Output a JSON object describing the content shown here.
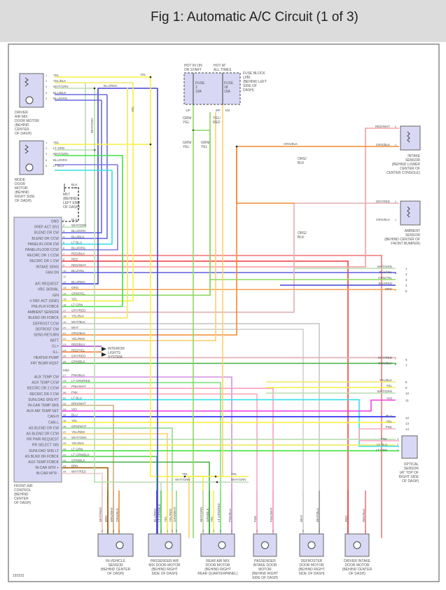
{
  "title": "Fig 1: Automatic A/C Circuit (1 of 3)",
  "figure_id": "191531",
  "wire_colors": {
    "BLK": "#555555",
    "WHT/GRN": "#b8dcb0",
    "BLU/GRN": "#6a6ae0",
    "BLU/BLK": "#6a6ae0",
    "LT BLU": "#33e0e8",
    "BLU/ORG": "#7a7ae0",
    "RED/BLK": "#f07a7a",
    "RED": "#f04040",
    "RED/WHT": "#f4a0a0",
    "BLU/YEL": "#6a6ae0",
    "BLU/RED": "#4040d8",
    "ORG": "#f8a860",
    "GRN/YEL": "#8cd860",
    "YEL": "#f8f040",
    "LT GRN": "#40e040",
    "GRY/RED": "#e0b0b0",
    "YEL/BLK": "#f0e860",
    "WHT/BLK": "#c8c8c8",
    "WHT": "#d0d0d0",
    "ORG/BLK": "#f08a30",
    "YEL/RED": "#f8d070",
    "RED/BLU": "#b050c0",
    "RED/YEL": "#f08040",
    "GRN/BLK": "#40b040",
    "PNK/BLU": "#d090e0",
    "LT GRN/RED": "#80e080",
    "PNK/WHT": "#f8a0c0",
    "PNK": "#f8a8c0",
    "BRN/WHT": "#c8b080",
    "VIO": "#f040e0",
    "BLU": "#2020f0",
    "GRN/WHT": "#90d890",
    "YEL/RED2": "#f8d070",
    "LT GRN/BLK": "#50d050",
    "BRN": "#a06010",
    "WHT/RED": "#f0c8c8"
  },
  "front_control": {
    "label": [
      "FRONT AIR",
      "CONTROL",
      "(BEHIND",
      "CENTER",
      "OF DASH)"
    ],
    "connector_mid": "M58",
    "pins": [
      {
        "n": "1",
        "fn": "GND",
        "wire": "BLK"
      },
      {
        "n": "2",
        "fn": "VREF ACT (5V)",
        "wire": "WHT/GRN"
      },
      {
        "n": "3",
        "fn": "BLEND DR CW",
        "wire": "BLU/GRN"
      },
      {
        "n": "4",
        "fn": "BLEND DR CCW",
        "wire": "BLU/BLK"
      },
      {
        "n": "5",
        "fn": "PANEL/FLOOR CW",
        "wire": "LT BLU"
      },
      {
        "n": "6",
        "fn": "PANEL/FLOOR CCW",
        "wire": "BLU/ORG"
      },
      {
        "n": "7",
        "fn": "RECIRC DR 1 CCW",
        "wire": "RED/BLK"
      },
      {
        "n": "8",
        "fn": "RECIRC DR 1 CW",
        "wire": "RED"
      },
      {
        "n": "9",
        "fn": "INTAKE SENS",
        "wire": "RED/WHT"
      },
      {
        "n": "10",
        "fn": "FAN ON",
        "wire": "BLU/YEL"
      },
      {
        "n": "11",
        "fn": "",
        "wire": ""
      },
      {
        "n": "12",
        "fn": "A/C REQUEST",
        "wire": "BLU/RED"
      },
      {
        "n": "13",
        "fn": "VRC SIGNAL",
        "wire": "ORG"
      },
      {
        "n": "14",
        "fn": "IGN",
        "wire": "GRN/YEL"
      },
      {
        "n": "15",
        "fn": "V REF ACT (GND)",
        "wire": "YEL"
      },
      {
        "n": "16",
        "fn": "PNL/FLR FDBCK",
        "wire": "LT GRN"
      },
      {
        "n": "17",
        "fn": "AMBIENT SENSOR",
        "wire": "GRY/RED"
      },
      {
        "n": "18",
        "fn": "BLEND DR FDBCK",
        "wire": "YEL/BLK"
      },
      {
        "n": "19",
        "fn": "DEFROST CCW",
        "wire": "WHT/BLK"
      },
      {
        "n": "20",
        "fn": "DEFROST CW",
        "wire": "WHT"
      },
      {
        "n": "21",
        "fn": "SENS RETURN",
        "wire": "ORG/BLK"
      },
      {
        "n": "22",
        "fn": "BATT",
        "wire": "YEL/RED"
      },
      {
        "n": "23",
        "fn": "ILL+",
        "wire": "RED/BLU"
      },
      {
        "n": "24",
        "fn": "ILL-",
        "wire": "RED/YEL"
      },
      {
        "n": "25",
        "fn": "HEATER PUMP",
        "wire": "GRY/RED"
      },
      {
        "n": "26",
        "fn": "FRT BLWR RQST",
        "wire": "GRN/BLK"
      },
      {
        "n": "27",
        "fn": "AUX TEMP CW",
        "wire": "PNK/BLU"
      },
      {
        "n": "28",
        "fn": "AUX TEMP CCW",
        "wire": "LT GRN/RED"
      },
      {
        "n": "29",
        "fn": "RECIRC DR 2 CCW",
        "wire": "PNK/WHT"
      },
      {
        "n": "30",
        "fn": "RECIRC DR 2 CW",
        "wire": "PNK"
      },
      {
        "n": "31",
        "fn": "SUNLOAD SNS RT",
        "wire": "LT BLU"
      },
      {
        "n": "32",
        "fn": "IN-CAR TEMP SNS",
        "wire": "BRN/WHT"
      },
      {
        "n": "33",
        "fn": "AUX AIR TEMP SET",
        "wire": "VIO"
      },
      {
        "n": "34",
        "fn": "CAN-H",
        "wire": "BLU"
      },
      {
        "n": "35",
        "fn": "CAN-L",
        "wire": "YEL"
      },
      {
        "n": "36",
        "fn": "AS BLEND DR CW",
        "wire": "GRN/WHT"
      },
      {
        "n": "37",
        "fn": "AS BLEND DR CCW",
        "wire": "YEL/RED"
      },
      {
        "n": "38",
        "fn": "RR PWR REQUEST",
        "wire": "WHT/GRN"
      },
      {
        "n": "39",
        "fn": "RR SELECT SIG",
        "wire": "YEL/BLK"
      },
      {
        "n": "40",
        "fn": "SUNLOAD SNS LT",
        "wire": "LT GRN"
      },
      {
        "n": "41",
        "fn": "AS BLND DR FDBCK",
        "wire": "LT GRN/BLK"
      },
      {
        "n": "42",
        "fn": "AUX TEMP FDBCK",
        "wire": "GRN/BLK"
      },
      {
        "n": "43",
        "fn": "IN-CAR MTR +",
        "wire": "BRN"
      },
      {
        "n": "44",
        "fn": "IN-CAR MTR -",
        "wire": "WHT/RED"
      }
    ]
  },
  "interior_lights": [
    "INTERIOR",
    "LIGHTS",
    "SYSTEM"
  ],
  "driver_air_mix": {
    "label": [
      "DRIVER",
      "AIR MIX",
      "DOOR MOTOR",
      "(BEHIND",
      "CENTER",
      "OF DASH)"
    ],
    "pins": [
      {
        "n": "1",
        "wire": "YEL"
      },
      {
        "n": "2",
        "wire": "YEL/BLK"
      },
      {
        "n": "3",
        "wire": "WHT/GRN"
      },
      {
        "n": "6",
        "wire": "BLU/BLK"
      },
      {
        "n": "5",
        "wire": "BLU/GRN"
      }
    ]
  },
  "mode_door": {
    "label": [
      "MODE",
      "DOOR",
      "MOTOR",
      "(BEHIND",
      "RIGHT SIDE",
      "OF DASH)"
    ],
    "pins": [
      {
        "n": "1",
        "wire": "YEL"
      },
      {
        "n": "2",
        "wire": "LT GRN"
      },
      {
        "n": "3",
        "wire": "WHT/GRN"
      },
      {
        "n": "6",
        "wire": "BLU/ORG"
      },
      {
        "n": "5",
        "wire": "LT BLU"
      }
    ]
  },
  "top_wire_labels": {
    "yel": "YEL",
    "blu_red": "BLU/RED",
    "yel_vert": "YEL",
    "wht_grn_vert": "WHT/GRN"
  },
  "ground": {
    "wire": "BLK",
    "label": [
      "M57",
      "(BEHIND",
      "LEFT END",
      "OF DASH)"
    ]
  },
  "fuse_block": {
    "hot1": [
      "HOT IN ON",
      "OR START"
    ],
    "hot2": [
      "HOT AT",
      "ALL TIMES"
    ],
    "label": [
      "FUSE BLOCK",
      "(J/B)",
      "(BEHIND LEFT",
      "SIDE OF",
      "DASH)"
    ],
    "fuse1": [
      "FUSE",
      "2",
      "10A"
    ],
    "fuse2": [
      "FUSE",
      "18",
      "15A"
    ],
    "pin1": "1IP",
    "pin2": "8IP",
    "conn": "M4",
    "wire1": [
      "GRN/",
      "YEL"
    ],
    "wire2": [
      "YEL/",
      "RED"
    ],
    "wire3": [
      "GRN/",
      "YEL"
    ],
    "wire4": [
      "GRN/",
      "YEL"
    ]
  },
  "mid_labels": {
    "org_blk": "ORG/BLK",
    "org_blk_vert1": [
      "ORG/",
      "BLK"
    ],
    "org_blk_vert2": [
      "ORG/",
      "BLK"
    ],
    "yel_a": "YEL",
    "wht_grn_a": "WHT/GRN",
    "yel_b": "YEL",
    "wht_grn_b": "WHT/GRN"
  },
  "intake_sensor": {
    "label": [
      "INTAKE",
      "SENSOR",
      "(BEHIND LOWER",
      "CENTER OF",
      "CENTER CONSOLE)"
    ],
    "pins": [
      {
        "n": "2",
        "wire": "RED/WHT"
      },
      {
        "n": "1",
        "wire": "ORG/BLK"
      }
    ]
  },
  "ambient_sensor": {
    "label": [
      "AMBIENT",
      "SENSOR",
      "(BEHIND CENTER OF",
      "FRONT BUMPER)"
    ],
    "pins": [
      {
        "n": "2",
        "wire": "GRY/RED"
      },
      {
        "n": "1",
        "wire": "ORG/BLK"
      }
    ]
  },
  "right_connector": [
    {
      "n": "1",
      "wire": "WHT/GRN"
    },
    {
      "n": "2",
      "wire": "BLU/YEL"
    },
    {
      "n": "3",
      "wire": "GRN/YEL"
    },
    {
      "n": "4",
      "wire": "BLU/RED"
    },
    {
      "n": "5",
      "wire": "ORG"
    },
    {
      "n": "6",
      "wire": "GRY/RED"
    },
    {
      "n": "7",
      "wire": "GRN/BLK"
    },
    {
      "n": "8",
      "wire": "YEL/BLK"
    },
    {
      "n": "9",
      "wire": "YEL"
    },
    {
      "n": "10",
      "wire": "WHT/GRN"
    },
    {
      "n": "11",
      "wire": "VIO"
    },
    {
      "n": "12",
      "wire": "BLU"
    },
    {
      "n": "13",
      "wire": "YEL"
    },
    {
      "n": "14",
      "wire": "PNK"
    }
  ],
  "optical_sensor": {
    "label": [
      "OPTICAL",
      "SENSOR",
      "(AT TOP OF",
      "RIGHT SIDE",
      "OF DASH)"
    ],
    "pins": [
      {
        "n": "3",
        "wire": "PNK"
      },
      {
        "n": "2",
        "wire": "LT BLU"
      },
      {
        "n": "1",
        "wire": "LT GRN"
      }
    ]
  },
  "bottom_components": [
    {
      "label": [
        "IN-VEHICLE",
        "SENSOR",
        "(BEHIND CENTER",
        "OF DASH)"
      ],
      "pins": [
        {
          "n": "2",
          "wire": "WHT/RED"
        },
        {
          "n": "3",
          "wire": "BRN"
        },
        {
          "n": "4",
          "wire": "BRN/WHT"
        },
        {
          "n": "1",
          "wire": "ORG/BLK"
        }
      ]
    },
    {
      "label": [
        "PASSENGER AIR",
        "MIX DOOR MOTOR",
        "(BEHIND RIGHT",
        "SIDE OF DASH)"
      ],
      "pins": [
        {
          "n": "3",
          "wire": "BLU/RED"
        },
        {
          "n": "2",
          "wire": "LT GRN/BLK"
        },
        {
          "n": "1",
          "wire": "YEL"
        },
        {
          "n": "6",
          "wire": "YEL/RED"
        },
        {
          "n": "5",
          "wire": "GRN/WHT"
        }
      ]
    },
    {
      "label": [
        "REAR AIR MIX",
        "DOOR MOTOR",
        "(BEHIND RIGHT",
        "REAR QUARTERPANEL)"
      ],
      "pins": [
        {
          "n": "3",
          "wire": "WHT/GRN"
        },
        {
          "n": "4",
          "wire": "GRN/BLK"
        },
        {
          "n": "2",
          "wire": "YEL"
        },
        {
          "n": "6",
          "wire": "LT GRN/RED"
        },
        {
          "n": "1",
          "wire": "PNK/BLU"
        }
      ]
    },
    {
      "label": [
        "PASSENGER",
        "INTAKE DOOR",
        "MOTOR",
        "(BEHIND RIGHT",
        "SIDE OF DASH)"
      ],
      "pins": [
        {
          "n": "2",
          "wire": "PNK"
        },
        {
          "n": "1",
          "wire": "PNK/WHT"
        }
      ]
    },
    {
      "label": [
        "DEFROSTER",
        "DOOR MOTOR",
        "(BEHIND RIGHT",
        "SIDE OF DASH)"
      ],
      "pins": [
        {
          "n": "2",
          "wire": "WHT"
        },
        {
          "n": "1",
          "wire": "WHT/BLU"
        }
      ]
    },
    {
      "label": [
        "DRIVER INTAKE",
        "DOOR MOTOR",
        "(BEHIND CENTER",
        "OF DASH)"
      ],
      "pins": [
        {
          "n": "2",
          "wire": "RED"
        },
        {
          "n": "1",
          "wire": "RED/BLK"
        }
      ]
    }
  ]
}
